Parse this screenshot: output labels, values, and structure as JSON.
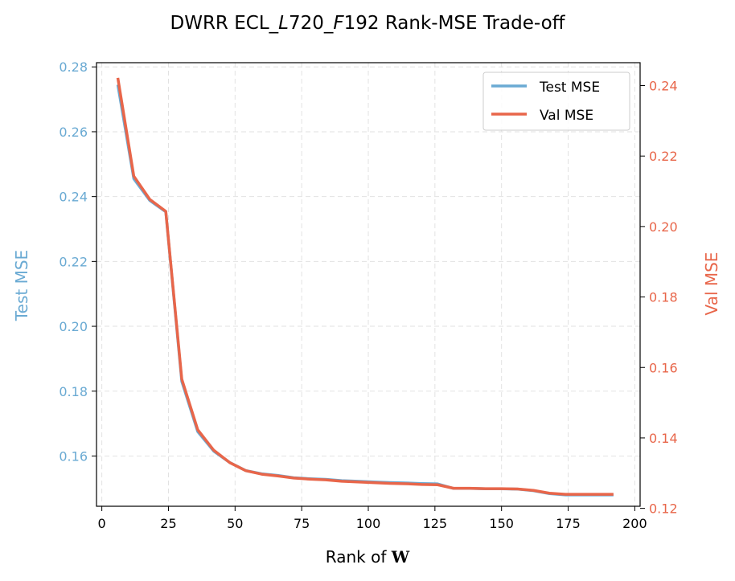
{
  "chart_data": {
    "type": "line",
    "title_parts": [
      "DWRR ECL_",
      "L",
      "720_",
      "F",
      "192 Rank-MSE Trade-off"
    ],
    "xlabel": "Rank of ",
    "xlabel_symbol": "W",
    "ylabel_left": "Test MSE",
    "ylabel_right": "Val MSE",
    "xlim": [
      -2,
      202
    ],
    "ylim_left": [
      0.1445,
      0.2813
    ],
    "ylim_right": [
      0.1206,
      0.2465
    ],
    "x_ticks": [
      0,
      25,
      50,
      75,
      100,
      125,
      150,
      175,
      200
    ],
    "y_left_ticks": [
      0.16,
      0.18,
      0.2,
      0.22,
      0.24,
      0.26,
      0.28
    ],
    "y_left_tick_labels": [
      "0.16",
      "0.18",
      "0.20",
      "0.22",
      "0.24",
      "0.26",
      "0.28"
    ],
    "y_right_ticks": [
      0.12,
      0.14,
      0.16,
      0.18,
      0.2,
      0.22,
      0.24
    ],
    "y_right_tick_labels": [
      "0.12",
      "0.14",
      "0.16",
      "0.18",
      "0.20",
      "0.22",
      "0.24"
    ],
    "grid": true,
    "legend_position": "top-right",
    "series": [
      {
        "name": "Test MSE",
        "axis": "left",
        "color": "#6aaad3",
        "x": [
          6,
          12,
          18,
          24,
          30,
          36,
          42,
          48,
          54,
          60,
          66,
          72,
          78,
          84,
          90,
          96,
          102,
          108,
          114,
          120,
          126,
          132,
          138,
          144,
          150,
          156,
          162,
          168,
          174,
          180,
          186,
          192
        ],
        "values": [
          0.2745,
          0.2455,
          0.2388,
          0.2353,
          0.183,
          0.1675,
          0.1615,
          0.158,
          0.1555,
          0.1545,
          0.154,
          0.1533,
          0.153,
          0.1528,
          0.1524,
          0.1522,
          0.152,
          0.1518,
          0.1517,
          0.1515,
          0.1514,
          0.15,
          0.15,
          0.1499,
          0.1499,
          0.1498,
          0.1493,
          0.1484,
          0.148,
          0.148,
          0.148,
          0.148
        ]
      },
      {
        "name": "Val MSE",
        "axis": "right",
        "color": "#e8664a",
        "x": [
          6,
          12,
          18,
          24,
          30,
          36,
          42,
          48,
          54,
          60,
          66,
          72,
          78,
          84,
          90,
          96,
          102,
          108,
          114,
          120,
          126,
          132,
          138,
          144,
          150,
          156,
          162,
          168,
          174,
          180,
          186,
          192
        ],
        "values": [
          0.2422,
          0.2143,
          0.2077,
          0.2043,
          0.1567,
          0.1423,
          0.1365,
          0.133,
          0.1307,
          0.1297,
          0.1292,
          0.1286,
          0.1283,
          0.1281,
          0.1277,
          0.1275,
          0.1273,
          0.1271,
          0.127,
          0.1268,
          0.1267,
          0.1257,
          0.1257,
          0.1256,
          0.1256,
          0.1255,
          0.1251,
          0.1243,
          0.124,
          0.124,
          0.124,
          0.124
        ]
      }
    ]
  },
  "colors": {
    "left_axis": "#6aaad3",
    "right_axis": "#e8664a"
  }
}
